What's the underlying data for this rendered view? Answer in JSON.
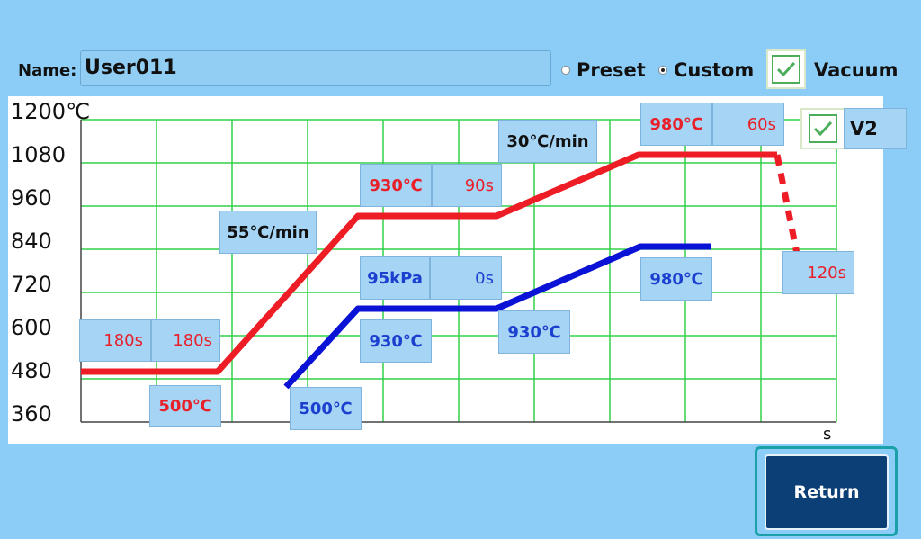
{
  "header": {
    "name_label": "Name:",
    "name_value": "User011",
    "preset_label": "Preset",
    "custom_label": "Custom",
    "selected_mode": "Custom",
    "vacuum_label": "Vacuum",
    "vacuum_checked": true
  },
  "chart": {
    "y_ticks": [
      "1200℃",
      "1080",
      "960",
      "840",
      "720",
      "600",
      "480",
      "360"
    ],
    "x_unit": "s",
    "v2_label": "V2",
    "v2_checked": true,
    "temperature_labels": {
      "hold1_time_a": "180s",
      "hold1_time_b": "180s",
      "start_temp": "500℃",
      "ramp1_rate": "55℃/min",
      "hold2_temp": "930℃",
      "hold2_time": "90s",
      "ramp2_rate": "30℃/min",
      "hold3_temp": "980℃",
      "hold3_time": "60s",
      "cool_time": "120s"
    },
    "pressure_labels": {
      "pressure": "95kPa",
      "pressure_time": "0s",
      "start_temp": "500℃",
      "hold2_temp": "930℃",
      "hold2_temp_end": "930℃",
      "hold3_temp": "980℃"
    }
  },
  "footer": {
    "return_label": "Return"
  },
  "colors": {
    "background": "#8ccdf7",
    "red_profile": "#ee1c24",
    "blue_profile": "#0a12d6",
    "grid": "#33d04a",
    "return_button": "#0b3f76"
  }
}
